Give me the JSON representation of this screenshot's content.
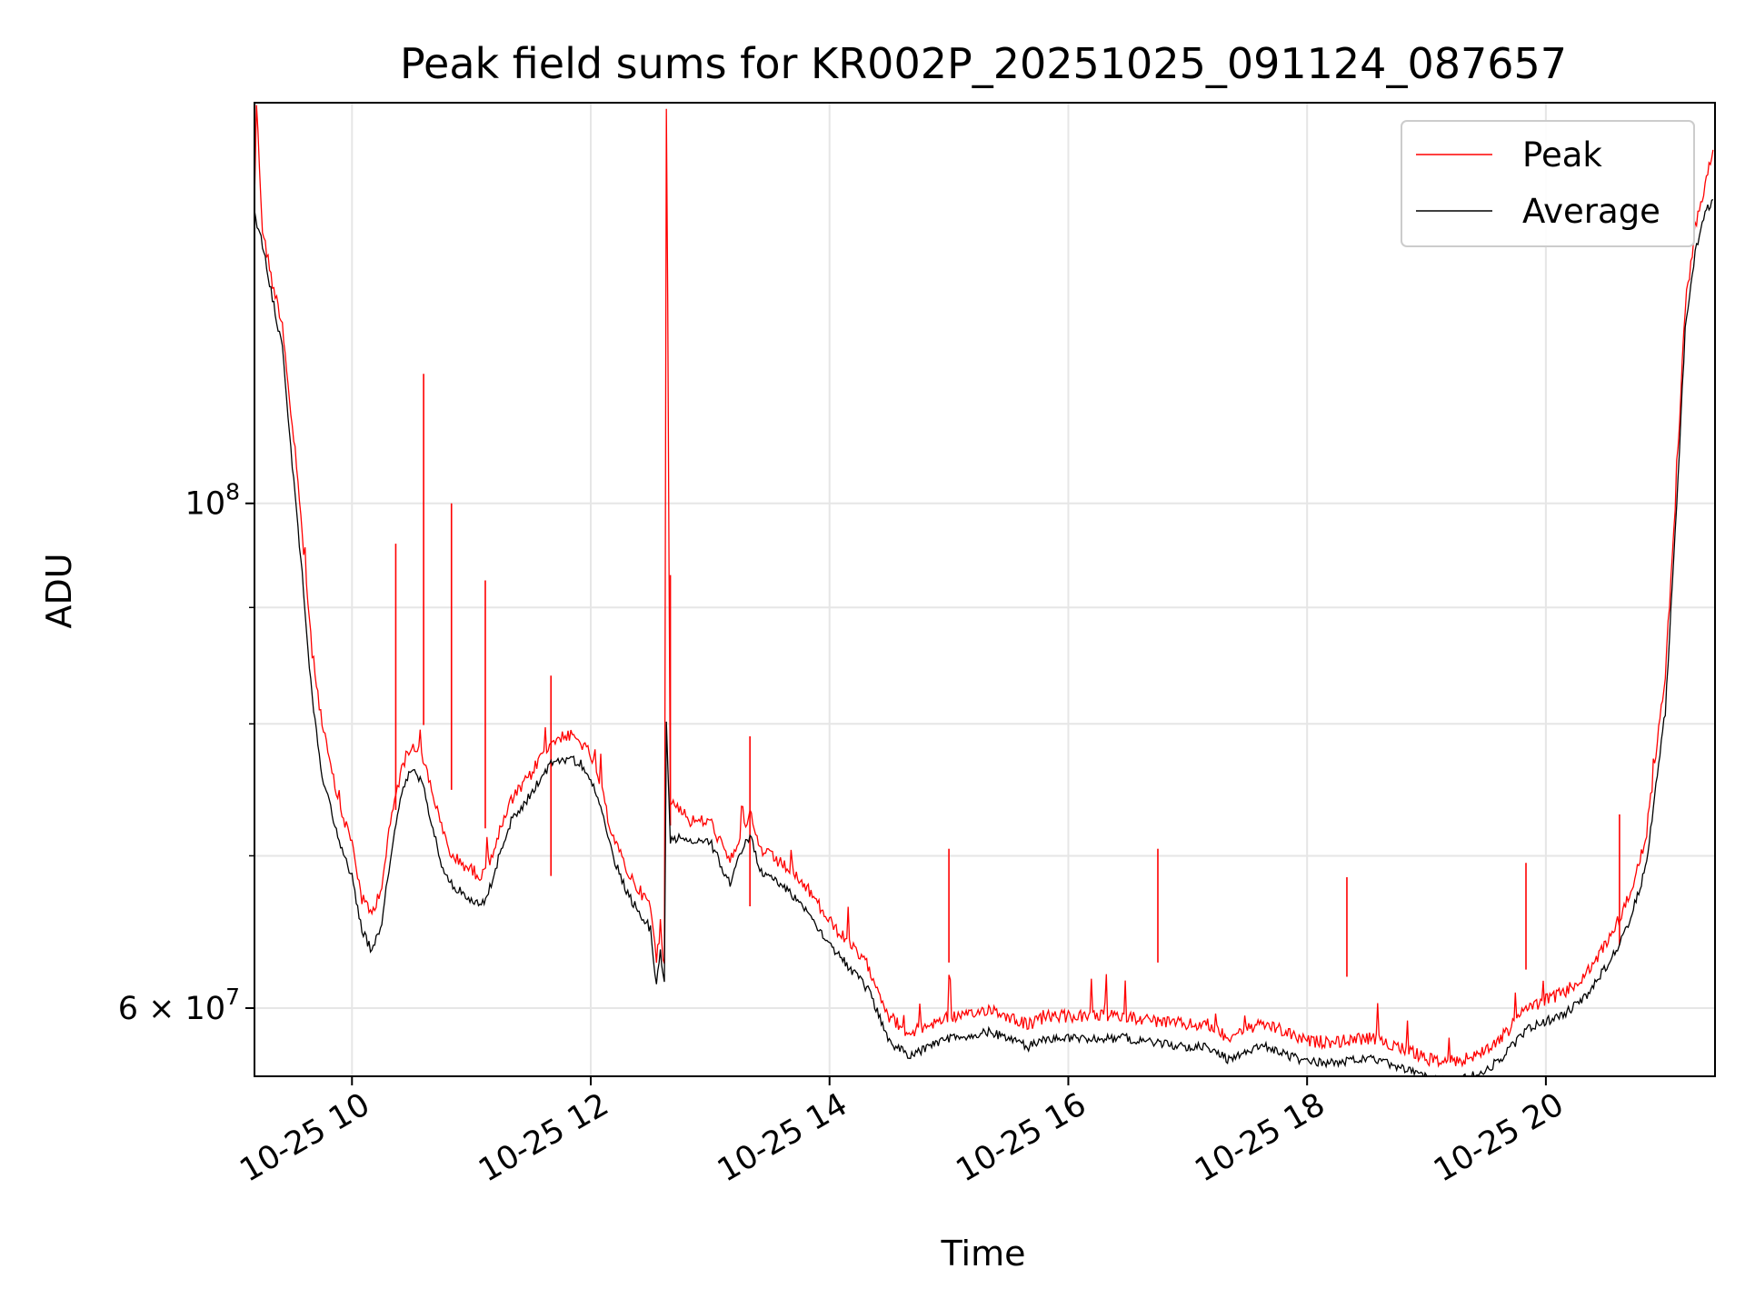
{
  "chart_data": {
    "type": "line",
    "title": "Peak field sums for KR002P_20251025_091124_087657",
    "xlabel": "Time",
    "ylabel": "ADU",
    "x_axis": {
      "kind": "datetime",
      "range": [
        "2025-10-25 09:11",
        "2025-10-25 21:25"
      ],
      "ticks": [
        {
          "value": "2025-10-25 10:00",
          "label": "10-25 10"
        },
        {
          "value": "2025-10-25 12:00",
          "label": "10-25 12"
        },
        {
          "value": "2025-10-25 14:00",
          "label": "10-25 14"
        },
        {
          "value": "2025-10-25 16:00",
          "label": "10-25 16"
        },
        {
          "value": "2025-10-25 18:00",
          "label": "10-25 18"
        },
        {
          "value": "2025-10-25 20:00",
          "label": "10-25 20"
        }
      ]
    },
    "y_axis": {
      "scale": "log",
      "range": [
        56000000,
        150000000
      ],
      "ticks": [
        {
          "value": 60000000,
          "base": "6 × 10",
          "exp": "7"
        },
        {
          "value": 100000000,
          "base": "10",
          "exp": "8"
        }
      ],
      "minor_ticks": [
        70000000,
        80000000,
        90000000
      ]
    },
    "grid": true,
    "legend": {
      "position": "upper right"
    },
    "series": [
      {
        "name": "Peak",
        "color": "#ff0000",
        "points": [
          [
            "2025-10-25 09:11",
            136000000
          ],
          [
            "2025-10-25 09:12",
            150000000
          ],
          [
            "2025-10-25 09:15",
            132000000
          ],
          [
            "2025-10-25 09:20",
            125000000
          ],
          [
            "2025-10-25 09:25",
            120000000
          ],
          [
            "2025-10-25 09:30",
            108000000
          ],
          [
            "2025-10-25 09:35",
            97000000
          ],
          [
            "2025-10-25 09:40",
            86000000
          ],
          [
            "2025-10-25 09:45",
            80000000
          ],
          [
            "2025-10-25 09:50",
            76000000
          ],
          [
            "2025-10-25 09:55",
            73000000
          ],
          [
            "2025-10-25 10:00",
            71000000
          ],
          [
            "2025-10-25 10:05",
            67000000
          ],
          [
            "2025-10-25 10:10",
            66000000
          ],
          [
            "2025-10-25 10:15",
            68000000
          ],
          [
            "2025-10-25 10:20",
            73000000
          ],
          [
            "2025-10-25 10:25",
            76500000
          ],
          [
            "2025-10-25 10:30",
            78500000
          ],
          [
            "2025-10-25 10:35",
            77500000
          ],
          [
            "2025-10-25 10:40",
            75000000
          ],
          [
            "2025-10-25 10:45",
            72000000
          ],
          [
            "2025-10-25 10:50",
            70000000
          ],
          [
            "2025-10-25 10:55",
            69500000
          ],
          [
            "2025-10-25 11:00",
            69000000
          ],
          [
            "2025-10-25 11:05",
            68500000
          ],
          [
            "2025-10-25 11:10",
            70000000
          ],
          [
            "2025-10-25 11:15",
            72000000
          ],
          [
            "2025-10-25 11:20",
            74000000
          ],
          [
            "2025-10-25 11:25",
            75000000
          ],
          [
            "2025-10-25 11:30",
            76000000
          ],
          [
            "2025-10-25 11:35",
            77500000
          ],
          [
            "2025-10-25 11:40",
            78500000
          ],
          [
            "2025-10-25 11:45",
            79000000
          ],
          [
            "2025-10-25 11:50",
            79000000
          ],
          [
            "2025-10-25 11:55",
            78500000
          ],
          [
            "2025-10-25 12:00",
            77500000
          ],
          [
            "2025-10-25 12:05",
            75000000
          ],
          [
            "2025-10-25 12:10",
            72000000
          ],
          [
            "2025-10-25 12:15",
            70000000
          ],
          [
            "2025-10-25 12:20",
            68500000
          ],
          [
            "2025-10-25 12:25",
            67500000
          ],
          [
            "2025-10-25 12:30",
            66500000
          ],
          [
            "2025-10-25 12:33",
            63000000
          ],
          [
            "2025-10-25 12:35",
            65000000
          ],
          [
            "2025-10-25 12:37",
            62500000
          ],
          [
            "2025-10-25 12:38",
            150000000
          ],
          [
            "2025-10-25 12:40",
            74000000
          ],
          [
            "2025-10-25 12:45",
            73500000
          ],
          [
            "2025-10-25 12:50",
            72500000
          ],
          [
            "2025-10-25 12:55",
            72500000
          ],
          [
            "2025-10-25 13:00",
            72500000
          ],
          [
            "2025-10-25 13:05",
            71000000
          ],
          [
            "2025-10-25 13:10",
            69500000
          ],
          [
            "2025-10-25 13:15",
            71500000
          ],
          [
            "2025-10-25 13:20",
            73000000
          ],
          [
            "2025-10-25 13:25",
            70500000
          ],
          [
            "2025-10-25 13:30",
            70000000
          ],
          [
            "2025-10-25 13:40",
            69000000
          ],
          [
            "2025-10-25 13:50",
            67500000
          ],
          [
            "2025-10-25 14:00",
            65500000
          ],
          [
            "2025-10-25 14:10",
            64000000
          ],
          [
            "2025-10-25 14:20",
            62500000
          ],
          [
            "2025-10-25 14:30",
            59500000
          ],
          [
            "2025-10-25 14:40",
            58500000
          ],
          [
            "2025-10-25 14:50",
            59000000
          ],
          [
            "2025-10-25 15:00",
            59500000
          ],
          [
            "2025-10-25 15:10",
            59500000
          ],
          [
            "2025-10-25 15:20",
            60000000
          ],
          [
            "2025-10-25 15:30",
            59500000
          ],
          [
            "2025-10-25 15:40",
            59000000
          ],
          [
            "2025-10-25 15:50",
            59500000
          ],
          [
            "2025-10-25 16:00",
            59500000
          ],
          [
            "2025-10-25 16:15",
            59500000
          ],
          [
            "2025-10-25 16:30",
            59500000
          ],
          [
            "2025-10-25 16:45",
            59200000
          ],
          [
            "2025-10-25 17:00",
            59000000
          ],
          [
            "2025-10-25 17:10",
            59000000
          ],
          [
            "2025-10-25 17:20",
            58300000
          ],
          [
            "2025-10-25 17:30",
            58800000
          ],
          [
            "2025-10-25 17:40",
            59000000
          ],
          [
            "2025-10-25 17:50",
            58500000
          ],
          [
            "2025-10-25 18:00",
            58000000
          ],
          [
            "2025-10-25 18:15",
            58000000
          ],
          [
            "2025-10-25 18:30",
            58200000
          ],
          [
            "2025-10-25 18:45",
            57800000
          ],
          [
            "2025-10-25 19:00",
            57000000
          ],
          [
            "2025-10-25 19:10",
            56800000
          ],
          [
            "2025-10-25 19:20",
            57000000
          ],
          [
            "2025-10-25 19:30",
            57500000
          ],
          [
            "2025-10-25 19:40",
            58500000
          ],
          [
            "2025-10-25 19:50",
            60000000
          ],
          [
            "2025-10-25 20:00",
            60500000
          ],
          [
            "2025-10-25 20:10",
            61000000
          ],
          [
            "2025-10-25 20:20",
            62000000
          ],
          [
            "2025-10-25 20:30",
            64000000
          ],
          [
            "2025-10-25 20:40",
            66500000
          ],
          [
            "2025-10-25 20:50",
            71000000
          ],
          [
            "2025-10-25 21:00",
            84000000
          ],
          [
            "2025-10-25 21:05",
            100000000
          ],
          [
            "2025-10-25 21:10",
            122000000
          ],
          [
            "2025-10-25 21:15",
            132000000
          ],
          [
            "2025-10-25 21:20",
            138000000
          ],
          [
            "2025-10-25 21:24",
            143000000
          ]
        ],
        "spikes": [
          [
            "2025-10-25 10:22",
            96000000
          ],
          [
            "2025-10-25 10:36",
            114000000
          ],
          [
            "2025-10-25 10:50",
            100000000
          ],
          [
            "2025-10-25 11:07",
            92500000
          ],
          [
            "2025-10-25 11:40",
            84000000
          ],
          [
            "2025-10-25 12:40",
            93000000
          ],
          [
            "2025-10-25 13:20",
            79000000
          ],
          [
            "2025-10-25 15:00",
            70500000
          ],
          [
            "2025-10-25 16:45",
            70500000
          ],
          [
            "2025-10-25 18:20",
            68500000
          ],
          [
            "2025-10-25 19:50",
            69500000
          ],
          [
            "2025-10-25 20:37",
            73000000
          ]
        ]
      },
      {
        "name": "Average",
        "color": "#000000",
        "points": [
          [
            "2025-10-25 09:11",
            134000000
          ],
          [
            "2025-10-25 09:15",
            130000000
          ],
          [
            "2025-10-25 09:20",
            123000000
          ],
          [
            "2025-10-25 09:25",
            117000000
          ],
          [
            "2025-10-25 09:30",
            104000000
          ],
          [
            "2025-10-25 09:35",
            93000000
          ],
          [
            "2025-10-25 09:40",
            82000000
          ],
          [
            "2025-10-25 09:45",
            76000000
          ],
          [
            "2025-10-25 09:50",
            73000000
          ],
          [
            "2025-10-25 09:55",
            70500000
          ],
          [
            "2025-10-25 10:00",
            68500000
          ],
          [
            "2025-10-25 10:05",
            65000000
          ],
          [
            "2025-10-25 10:10",
            63500000
          ],
          [
            "2025-10-25 10:15",
            65500000
          ],
          [
            "2025-10-25 10:20",
            70500000
          ],
          [
            "2025-10-25 10:25",
            74500000
          ],
          [
            "2025-10-25 10:30",
            76500000
          ],
          [
            "2025-10-25 10:35",
            75500000
          ],
          [
            "2025-10-25 10:40",
            72500000
          ],
          [
            "2025-10-25 10:45",
            69500000
          ],
          [
            "2025-10-25 10:50",
            68000000
          ],
          [
            "2025-10-25 10:55",
            67500000
          ],
          [
            "2025-10-25 11:00",
            67000000
          ],
          [
            "2025-10-25 11:05",
            66500000
          ],
          [
            "2025-10-25 11:10",
            68000000
          ],
          [
            "2025-10-25 11:15",
            70500000
          ],
          [
            "2025-10-25 11:20",
            72500000
          ],
          [
            "2025-10-25 11:25",
            73500000
          ],
          [
            "2025-10-25 11:30",
            74500000
          ],
          [
            "2025-10-25 11:35",
            75800000
          ],
          [
            "2025-10-25 11:40",
            76800000
          ],
          [
            "2025-10-25 11:45",
            77200000
          ],
          [
            "2025-10-25 11:50",
            77200000
          ],
          [
            "2025-10-25 11:55",
            76800000
          ],
          [
            "2025-10-25 12:00",
            75800000
          ],
          [
            "2025-10-25 12:05",
            73500000
          ],
          [
            "2025-10-25 12:10",
            70500000
          ],
          [
            "2025-10-25 12:15",
            68500000
          ],
          [
            "2025-10-25 12:20",
            67000000
          ],
          [
            "2025-10-25 12:25",
            66000000
          ],
          [
            "2025-10-25 12:30",
            65000000
          ],
          [
            "2025-10-25 12:33",
            61500000
          ],
          [
            "2025-10-25 12:35",
            63500000
          ],
          [
            "2025-10-25 12:37",
            61500000
          ],
          [
            "2025-10-25 12:38",
            80000000
          ],
          [
            "2025-10-25 12:40",
            71000000
          ],
          [
            "2025-10-25 12:45",
            71500000
          ],
          [
            "2025-10-25 12:50",
            71000000
          ],
          [
            "2025-10-25 12:55",
            71000000
          ],
          [
            "2025-10-25 13:00",
            71000000
          ],
          [
            "2025-10-25 13:05",
            69500000
          ],
          [
            "2025-10-25 13:10",
            68000000
          ],
          [
            "2025-10-25 13:15",
            70000000
          ],
          [
            "2025-10-25 13:20",
            71500000
          ],
          [
            "2025-10-25 13:25",
            69000000
          ],
          [
            "2025-10-25 13:30",
            68500000
          ],
          [
            "2025-10-25 13:40",
            67500000
          ],
          [
            "2025-10-25 13:50",
            66000000
          ],
          [
            "2025-10-25 14:00",
            64000000
          ],
          [
            "2025-10-25 14:10",
            62500000
          ],
          [
            "2025-10-25 14:20",
            61000000
          ],
          [
            "2025-10-25 14:30",
            58000000
          ],
          [
            "2025-10-25 14:40",
            57200000
          ],
          [
            "2025-10-25 14:50",
            57700000
          ],
          [
            "2025-10-25 15:00",
            58200000
          ],
          [
            "2025-10-25 15:10",
            58200000
          ],
          [
            "2025-10-25 15:20",
            58600000
          ],
          [
            "2025-10-25 15:30",
            58200000
          ],
          [
            "2025-10-25 15:40",
            57700000
          ],
          [
            "2025-10-25 15:50",
            58200000
          ],
          [
            "2025-10-25 16:00",
            58200000
          ],
          [
            "2025-10-25 16:15",
            58200000
          ],
          [
            "2025-10-25 16:30",
            58200000
          ],
          [
            "2025-10-25 16:45",
            57900000
          ],
          [
            "2025-10-25 17:00",
            57700000
          ],
          [
            "2025-10-25 17:10",
            57700000
          ],
          [
            "2025-10-25 17:20",
            57000000
          ],
          [
            "2025-10-25 17:30",
            57500000
          ],
          [
            "2025-10-25 17:40",
            57700000
          ],
          [
            "2025-10-25 17:50",
            57200000
          ],
          [
            "2025-10-25 18:00",
            56800000
          ],
          [
            "2025-10-25 18:15",
            56800000
          ],
          [
            "2025-10-25 18:30",
            57000000
          ],
          [
            "2025-10-25 18:45",
            56600000
          ],
          [
            "2025-10-25 19:00",
            55900000
          ],
          [
            "2025-10-25 19:10",
            55700000
          ],
          [
            "2025-10-25 19:20",
            55900000
          ],
          [
            "2025-10-25 19:30",
            56300000
          ],
          [
            "2025-10-25 19:40",
            57300000
          ],
          [
            "2025-10-25 19:50",
            58700000
          ],
          [
            "2025-10-25 20:00",
            59200000
          ],
          [
            "2025-10-25 20:10",
            59700000
          ],
          [
            "2025-10-25 20:20",
            60700000
          ],
          [
            "2025-10-25 20:30",
            62500000
          ],
          [
            "2025-10-25 20:40",
            64800000
          ],
          [
            "2025-10-25 20:50",
            69000000
          ],
          [
            "2025-10-25 21:00",
            81000000
          ],
          [
            "2025-10-25 21:05",
            97000000
          ],
          [
            "2025-10-25 21:10",
            119000000
          ],
          [
            "2025-10-25 21:15",
            129000000
          ],
          [
            "2025-10-25 21:20",
            134000000
          ],
          [
            "2025-10-25 21:24",
            136000000
          ]
        ]
      }
    ]
  }
}
